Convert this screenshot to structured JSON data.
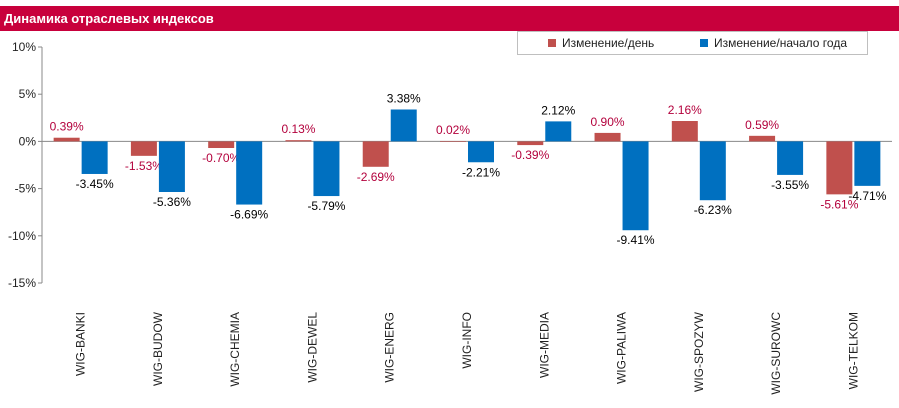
{
  "title": "Динамика отраслевых индексов",
  "colors": {
    "title_bg": "#c8003c",
    "day": "#c0504d",
    "ytd": "#0070c0",
    "day_label": "#b3003c",
    "ytd_label": "#000000"
  },
  "chart_data": {
    "type": "bar",
    "title": "Динамика отраслевых индексов",
    "categories": [
      "WIG-BANKI",
      "WIG-BUDOW",
      "WIG-CHEMIA",
      "WIG-DEWEL",
      "WIG-ENERG",
      "WIG-INFO",
      "WIG-MEDIA",
      "WIG-PALIWA",
      "WIG-SPOZYW",
      "WIG-SUROWC",
      "WIG-TELKOM"
    ],
    "series": [
      {
        "name": "Изменение/день",
        "values": [
          0.39,
          -1.53,
          -0.7,
          0.13,
          -2.69,
          0.02,
          -0.39,
          0.9,
          2.16,
          0.59,
          -5.61
        ],
        "labels": [
          "0.39%",
          "-1.53%",
          "-0.70%",
          "0.13%",
          "-2.69%",
          "0.02%",
          "-0.39%",
          "0.90%",
          "2.16%",
          "0.59%",
          "-5.61%"
        ]
      },
      {
        "name": "Изменение/начало года",
        "values": [
          -3.45,
          -5.36,
          -6.69,
          -5.79,
          3.38,
          -2.21,
          2.12,
          -9.41,
          -6.23,
          -3.55,
          -4.71
        ],
        "labels": [
          "-3.45%",
          "-5.36%",
          "-6.69%",
          "-5.79%",
          "3.38%",
          "-2.21%",
          "2.12%",
          "-9.41%",
          "-6.23%",
          "-3.55%",
          "-4.71%"
        ]
      }
    ],
    "yticks": [
      10,
      5,
      0,
      -5,
      -10,
      -15
    ],
    "ytick_labels": [
      "10%",
      "5%",
      "0%",
      "-5%",
      "-10%",
      "-15%"
    ],
    "ylim": [
      -15,
      10
    ],
    "grid": false,
    "legend": "top-right"
  }
}
